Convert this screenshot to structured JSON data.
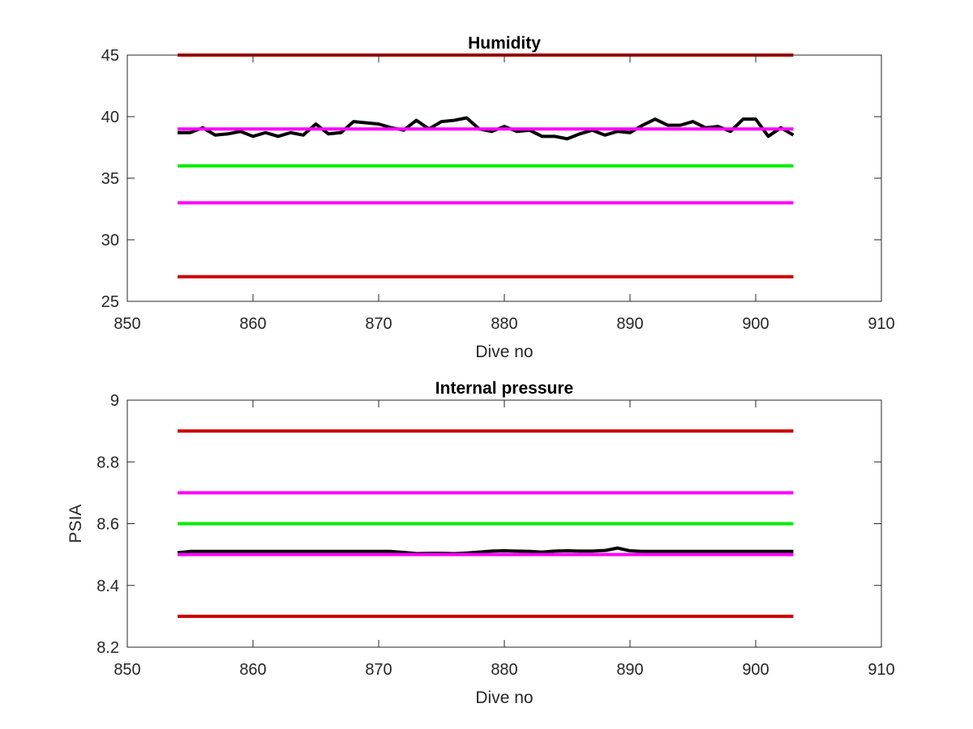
{
  "chart_data": [
    {
      "type": "line",
      "title": "Humidity",
      "xlabel": "Dive no",
      "ylabel": "",
      "xlim": [
        850,
        910
      ],
      "ylim": [
        25,
        45
      ],
      "xticks": [
        "850",
        "860",
        "870",
        "880",
        "890",
        "900",
        "910"
      ],
      "yticks": [
        "25",
        "30",
        "35",
        "40",
        "45"
      ],
      "grid": false,
      "series": [
        {
          "color": "#cc0000",
          "x": [
            854,
            903
          ],
          "values": [
            45,
            45
          ]
        },
        {
          "color": "#cc0000",
          "x": [
            854,
            903
          ],
          "values": [
            27,
            27
          ]
        },
        {
          "color": "#ff00ff",
          "x": [
            854,
            903
          ],
          "values": [
            33,
            33
          ]
        },
        {
          "color": "#00ee00",
          "x": [
            854,
            903
          ],
          "values": [
            36,
            36
          ]
        },
        {
          "color": "#000000",
          "x": [
            854,
            855,
            856,
            857,
            858,
            859,
            860,
            861,
            862,
            863,
            864,
            865,
            866,
            867,
            868,
            869,
            870,
            871,
            872,
            873,
            874,
            875,
            876,
            877,
            878,
            879,
            880,
            881,
            882,
            883,
            884,
            885,
            886,
            887,
            888,
            889,
            890,
            891,
            892,
            893,
            894,
            895,
            896,
            897,
            898,
            899,
            900,
            901,
            902,
            903
          ],
          "values": [
            38.7,
            38.7,
            39.1,
            38.5,
            38.6,
            38.8,
            38.4,
            38.7,
            38.4,
            38.7,
            38.5,
            39.4,
            38.6,
            38.7,
            39.6,
            39.5,
            39.4,
            39.1,
            38.9,
            39.7,
            39.0,
            39.6,
            39.7,
            39.9,
            39.0,
            38.8,
            39.2,
            38.8,
            38.9,
            38.4,
            38.4,
            38.2,
            38.6,
            38.9,
            38.5,
            38.8,
            38.7,
            39.3,
            39.8,
            39.3,
            39.3,
            39.6,
            39.1,
            39.2,
            38.8,
            39.8,
            39.8,
            38.4,
            39.1,
            38.5
          ]
        },
        {
          "color": "#ff00ff",
          "x": [
            854,
            903
          ],
          "values": [
            39,
            39
          ]
        }
      ]
    },
    {
      "type": "line",
      "title": "Internal pressure",
      "xlabel": "Dive no",
      "ylabel": "PSIA",
      "xlim": [
        850,
        910
      ],
      "ylim": [
        8.2,
        9
      ],
      "xticks": [
        "850",
        "860",
        "870",
        "880",
        "890",
        "900",
        "910"
      ],
      "yticks": [
        "8.2",
        "8.4",
        "8.6",
        "8.8",
        "9"
      ],
      "grid": false,
      "series": [
        {
          "color": "#cc0000",
          "x": [
            854,
            903
          ],
          "values": [
            8.9,
            8.9
          ]
        },
        {
          "color": "#cc0000",
          "x": [
            854,
            903
          ],
          "values": [
            8.3,
            8.3
          ]
        },
        {
          "color": "#ff00ff",
          "x": [
            854,
            903
          ],
          "values": [
            8.7,
            8.7
          ]
        },
        {
          "color": "#00ee00",
          "x": [
            854,
            903
          ],
          "values": [
            8.6,
            8.6
          ]
        },
        {
          "color": "#000000",
          "x": [
            854,
            855,
            860,
            865,
            870,
            871,
            872,
            873,
            874,
            875,
            876,
            877,
            878,
            879,
            880,
            881,
            882,
            883,
            884,
            885,
            886,
            887,
            888,
            889,
            890,
            891,
            895,
            900,
            903
          ],
          "values": [
            8.506,
            8.51,
            8.51,
            8.51,
            8.51,
            8.51,
            8.507,
            8.503,
            8.504,
            8.504,
            8.503,
            8.505,
            8.508,
            8.511,
            8.512,
            8.511,
            8.51,
            8.508,
            8.511,
            8.512,
            8.511,
            8.511,
            8.513,
            8.521,
            8.512,
            8.51,
            8.51,
            8.51,
            8.51
          ]
        },
        {
          "color": "#ff00ff",
          "x": [
            854,
            903
          ],
          "values": [
            8.5,
            8.5
          ]
        }
      ]
    }
  ]
}
